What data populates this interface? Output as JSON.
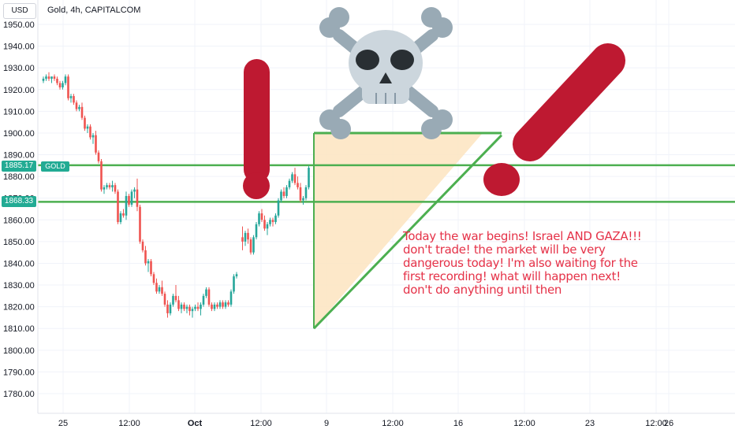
{
  "header": {
    "currency_button": "USD",
    "title": "Gold, 4h, CAPITALCOM"
  },
  "price_tags": {
    "upper": {
      "value": "1885.17",
      "label": "GOLD"
    },
    "lower": {
      "value": "1868.33"
    }
  },
  "annotation_lines": [
    "Today the war begins! Israel AND GAZA!!!",
    "don't trade! the market will be very",
    "dangerous today! I'm also waiting for the",
    "first recording! what will happen next!",
    "don't do anything until then"
  ],
  "icons": [
    "exclamation-icon",
    "skull-and-crossbones-icon",
    "slash-emoji-icon"
  ],
  "colors": {
    "bull": "#26a69a",
    "bear": "#ef5350",
    "line": "#4caf50",
    "triangle_fill": "#fde4bf",
    "emoji_red": "#be1931",
    "skull": "#ccd6dd",
    "bones": "#99aab5",
    "note": "#e53248"
  },
  "chart_data": {
    "type": "candlestick",
    "title": "Gold, 4h, CAPITALCOM",
    "y_ticks": [
      "1950.00",
      "1940.00",
      "1930.00",
      "1920.00",
      "1910.00",
      "1900.00",
      "1890.00",
      "1880.00",
      "1870.00",
      "1860.00",
      "1850.00",
      "1840.00",
      "1830.00",
      "1820.00",
      "1810.00",
      "1800.00",
      "1790.00",
      "1780.00"
    ],
    "x_ticks": [
      "25",
      "12:00",
      "Oct",
      "12:00",
      "9",
      "12:00",
      "16",
      "12:00",
      "23",
      "12:00",
      "26"
    ],
    "ylim": [
      1773,
      1954
    ],
    "horizontal_levels": [
      1885.17,
      1868.33
    ],
    "candles": [
      [
        1924,
        1926,
        1923,
        1925
      ],
      [
        1925,
        1927,
        1924,
        1926
      ],
      [
        1926,
        1928,
        1924,
        1925
      ],
      [
        1925,
        1926,
        1923,
        1926
      ],
      [
        1926,
        1927,
        1924,
        1925
      ],
      [
        1925,
        1926,
        1922,
        1923
      ],
      [
        1923,
        1924,
        1920,
        1921
      ],
      [
        1921,
        1924,
        1920,
        1923
      ],
      [
        1923,
        1927,
        1922,
        1926
      ],
      [
        1926,
        1927,
        1915,
        1916
      ],
      [
        1916,
        1918,
        1914,
        1917
      ],
      [
        1917,
        1918,
        1913,
        1914
      ],
      [
        1914,
        1915,
        1910,
        1911
      ],
      [
        1911,
        1913,
        1910,
        1912
      ],
      [
        1912,
        1914,
        1906,
        1907
      ],
      [
        1907,
        1908,
        1901,
        1902
      ],
      [
        1902,
        1904,
        1900,
        1903
      ],
      [
        1903,
        1904,
        1897,
        1898
      ],
      [
        1898,
        1900,
        1895,
        1899
      ],
      [
        1899,
        1901,
        1890,
        1891
      ],
      [
        1891,
        1892,
        1886,
        1887
      ],
      [
        1887,
        1888,
        1873,
        1874
      ],
      [
        1874,
        1876,
        1872,
        1875
      ],
      [
        1875,
        1877,
        1874,
        1876
      ],
      [
        1876,
        1877,
        1874,
        1875
      ],
      [
        1875,
        1878,
        1873,
        1876
      ],
      [
        1876,
        1877,
        1872,
        1873
      ],
      [
        1873,
        1874,
        1858,
        1859
      ],
      [
        1859,
        1864,
        1858,
        1863
      ],
      [
        1863,
        1865,
        1861,
        1862
      ],
      [
        1862,
        1873,
        1860,
        1871
      ],
      [
        1871,
        1872,
        1866,
        1867
      ],
      [
        1867,
        1874,
        1866,
        1873
      ],
      [
        1873,
        1875,
        1870,
        1874
      ],
      [
        1874,
        1879,
        1864,
        1866
      ],
      [
        1866,
        1867,
        1849,
        1850
      ],
      [
        1850,
        1851,
        1845,
        1846
      ],
      [
        1846,
        1848,
        1839,
        1840
      ],
      [
        1840,
        1842,
        1836,
        1841
      ],
      [
        1841,
        1842,
        1834,
        1835
      ],
      [
        1835,
        1836,
        1830,
        1831
      ],
      [
        1831,
        1833,
        1826,
        1827
      ],
      [
        1827,
        1830,
        1826,
        1829
      ],
      [
        1829,
        1832,
        1825,
        1826
      ],
      [
        1826,
        1827,
        1820,
        1821
      ],
      [
        1821,
        1823,
        1815,
        1817
      ],
      [
        1817,
        1822,
        1816,
        1821
      ],
      [
        1821,
        1826,
        1820,
        1825
      ],
      [
        1825,
        1830,
        1822,
        1823
      ],
      [
        1823,
        1825,
        1818,
        1819
      ],
      [
        1819,
        1822,
        1817,
        1821
      ],
      [
        1821,
        1822,
        1818,
        1819
      ],
      [
        1819,
        1821,
        1817,
        1820
      ],
      [
        1820,
        1821,
        1816,
        1818
      ],
      [
        1818,
        1820,
        1815,
        1819
      ],
      [
        1819,
        1821,
        1818,
        1820
      ],
      [
        1820,
        1822,
        1818,
        1819
      ],
      [
        1819,
        1822,
        1816,
        1821
      ],
      [
        1821,
        1826,
        1820,
        1825
      ],
      [
        1825,
        1829,
        1824,
        1828
      ],
      [
        1828,
        1829,
        1820,
        1821
      ],
      [
        1821,
        1822,
        1818,
        1819
      ],
      [
        1819,
        1822,
        1818,
        1821
      ],
      [
        1821,
        1822,
        1819,
        1820
      ],
      [
        1820,
        1823,
        1819,
        1822
      ],
      [
        1822,
        1823,
        1819,
        1820
      ],
      [
        1820,
        1823,
        1819,
        1822
      ],
      [
        1822,
        1823,
        1820,
        1821
      ],
      [
        1821,
        1828,
        1820,
        1827
      ],
      [
        1827,
        1835,
        1826,
        1834
      ],
      [
        1834,
        1836,
        1833,
        1835
      ],
      [
        1852,
        1857,
        1846,
        1850
      ],
      [
        1850,
        1855,
        1848,
        1854
      ],
      [
        1854,
        1856,
        1849,
        1851
      ],
      [
        1851,
        1852,
        1844,
        1845
      ],
      [
        1845,
        1853,
        1844,
        1852
      ],
      [
        1852,
        1859,
        1851,
        1858
      ],
      [
        1858,
        1864,
        1857,
        1863
      ],
      [
        1863,
        1865,
        1859,
        1860
      ],
      [
        1860,
        1862,
        1855,
        1856
      ],
      [
        1856,
        1859,
        1853,
        1858
      ],
      [
        1858,
        1861,
        1857,
        1860
      ],
      [
        1860,
        1861,
        1857,
        1859
      ],
      [
        1859,
        1863,
        1858,
        1862
      ],
      [
        1862,
        1870,
        1861,
        1869
      ],
      [
        1869,
        1874,
        1868,
        1873
      ],
      [
        1873,
        1875,
        1870,
        1871
      ],
      [
        1871,
        1876,
        1870,
        1875
      ],
      [
        1875,
        1879,
        1874,
        1878
      ],
      [
        1878,
        1882,
        1877,
        1881
      ],
      [
        1881,
        1884,
        1876,
        1877
      ],
      [
        1877,
        1880,
        1874,
        1875
      ],
      [
        1875,
        1877,
        1868,
        1869
      ],
      [
        1869,
        1871,
        1867,
        1870
      ],
      [
        1870,
        1876,
        1869,
        1875
      ],
      [
        1875,
        1885,
        1874,
        1884
      ]
    ],
    "gap_after_index": 70,
    "triangle": {
      "top_price": 1900,
      "bottom_price": 1810
    }
  }
}
